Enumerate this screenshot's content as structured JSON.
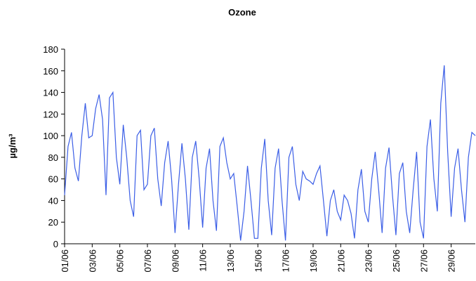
{
  "chart_data": {
    "type": "line",
    "title": "Ozone",
    "y_label": "µg/m³",
    "categories": [
      "01/06",
      null,
      null,
      null,
      null,
      null,
      null,
      null,
      "03/06",
      null,
      null,
      null,
      null,
      null,
      null,
      null,
      "05/06",
      null,
      null,
      null,
      null,
      null,
      null,
      null,
      "07/06",
      null,
      null,
      null,
      null,
      null,
      null,
      null,
      "09/06",
      null,
      null,
      null,
      null,
      null,
      null,
      null,
      "11/06",
      null,
      null,
      null,
      null,
      null,
      null,
      null,
      "13/06",
      null,
      null,
      null,
      null,
      null,
      null,
      null,
      "15/06",
      null,
      null,
      null,
      null,
      null,
      null,
      null,
      "17/06",
      null,
      null,
      null,
      null,
      null,
      null,
      null,
      "19/06",
      null,
      null,
      null,
      null,
      null,
      null,
      null,
      "21/06",
      null,
      null,
      null,
      null,
      null,
      null,
      null,
      "23/06",
      null,
      null,
      null,
      null,
      null,
      null,
      null,
      "25/06",
      null,
      null,
      null,
      null,
      null,
      null,
      null,
      "27/06",
      null,
      null,
      null,
      null,
      null,
      null,
      null,
      "29/06",
      null,
      null,
      null,
      null,
      null,
      null,
      null
    ],
    "series": [
      {
        "name": "Ozone",
        "color": "#3b5ee6",
        "values": [
          45,
          90,
          103,
          70,
          58,
          100,
          130,
          98,
          100,
          125,
          138,
          115,
          45,
          135,
          140,
          80,
          55,
          110,
          80,
          40,
          25,
          100,
          105,
          50,
          55,
          100,
          107,
          60,
          35,
          75,
          95,
          60,
          10,
          55,
          93,
          60,
          13,
          80,
          95,
          60,
          15,
          70,
          88,
          40,
          12,
          90,
          98,
          75,
          60,
          65,
          35,
          3,
          30,
          72,
          40,
          5,
          5,
          70,
          97,
          40,
          8,
          70,
          88,
          40,
          3,
          80,
          90,
          55,
          40,
          67,
          60,
          58,
          55,
          65,
          72,
          40,
          7,
          40,
          50,
          30,
          22,
          45,
          40,
          28,
          5,
          50,
          69,
          30,
          20,
          60,
          85,
          50,
          10,
          70,
          89,
          45,
          8,
          65,
          75,
          30,
          10,
          50,
          85,
          20,
          5,
          90,
          115,
          60,
          30,
          130,
          165,
          85,
          25,
          70,
          88,
          50,
          20,
          80,
          103,
          100
        ]
      }
    ],
    "ylim": [
      0,
      180
    ],
    "yticks": [
      0,
      20,
      40,
      60,
      80,
      100,
      120,
      140,
      160,
      180
    ],
    "grid": false
  }
}
